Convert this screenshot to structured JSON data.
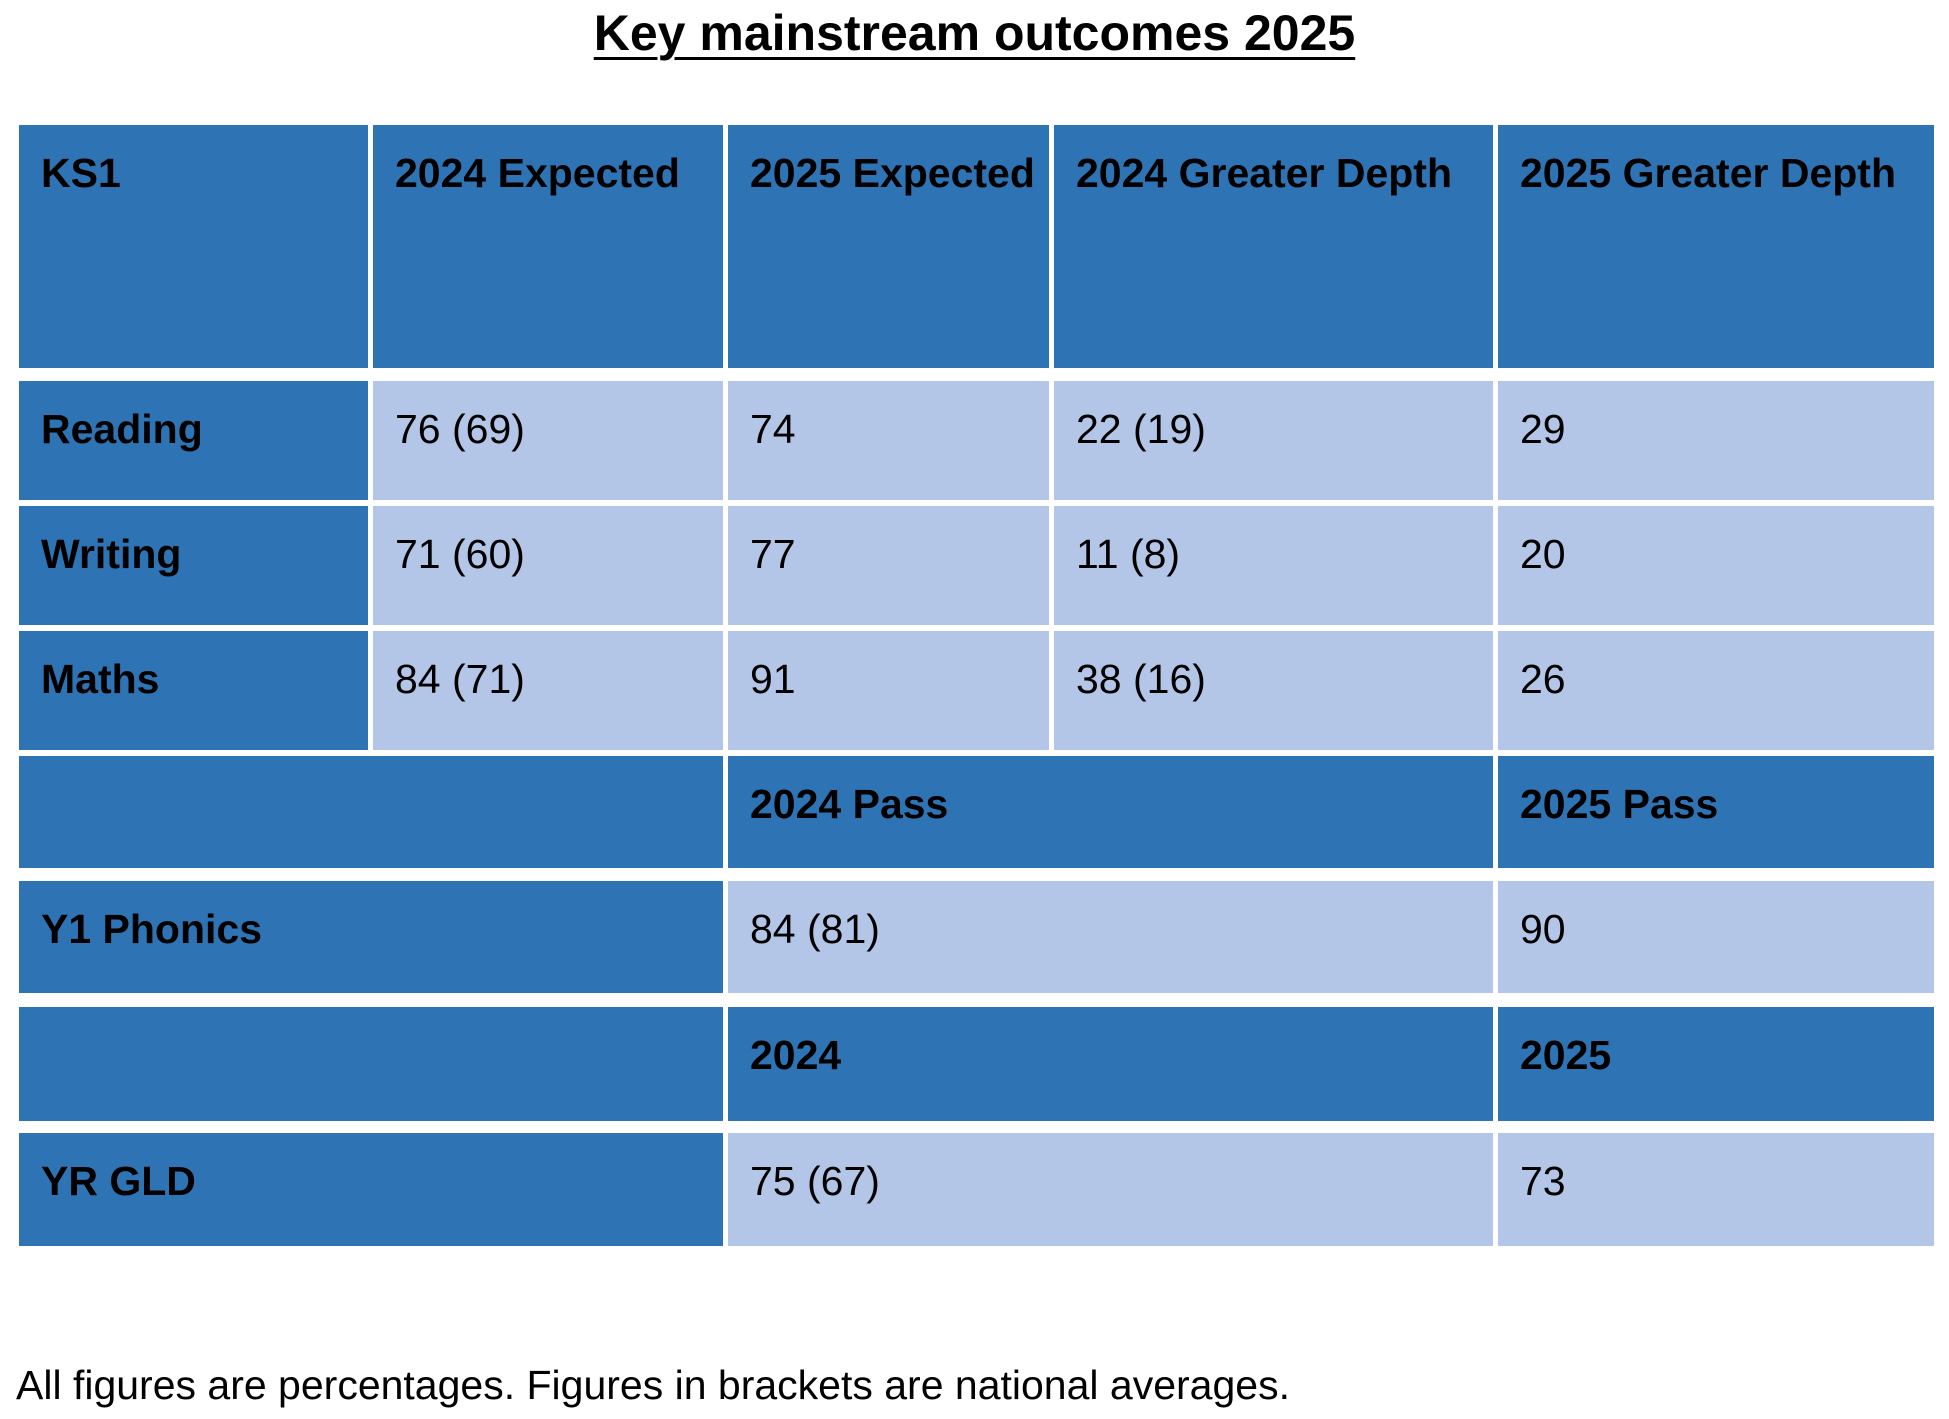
{
  "title": "Key mainstream outcomes 2025",
  "ks1": {
    "headers": [
      "KS1",
      "2024 Expected",
      "2025 Expected",
      "2024 Greater Depth",
      "2025 Greater Depth"
    ],
    "rows": [
      {
        "subject": "Reading",
        "values": [
          "76 (69)",
          "74",
          "22 (19)",
          "29"
        ]
      },
      {
        "subject": "Writing",
        "values": [
          "71 (60)",
          "77",
          "11 (8)",
          "20"
        ]
      },
      {
        "subject": "Maths",
        "values": [
          "84 (71)",
          "91",
          "38 (16)",
          "26"
        ]
      }
    ]
  },
  "phonics": {
    "headers": [
      "",
      "2024 Pass",
      "2025 Pass"
    ],
    "label": "Y1 Phonics",
    "values": [
      "84 (81)",
      "90"
    ]
  },
  "gld": {
    "headers": [
      "",
      "2024",
      "2025"
    ],
    "label": "YR GLD",
    "values": [
      "75 (67)",
      "73"
    ]
  },
  "footnote": "All figures are percentages. Figures in brackets are national averages.",
  "colors": {
    "header_blue": "#2e74b5",
    "value_blue": "#b4c6e7"
  }
}
